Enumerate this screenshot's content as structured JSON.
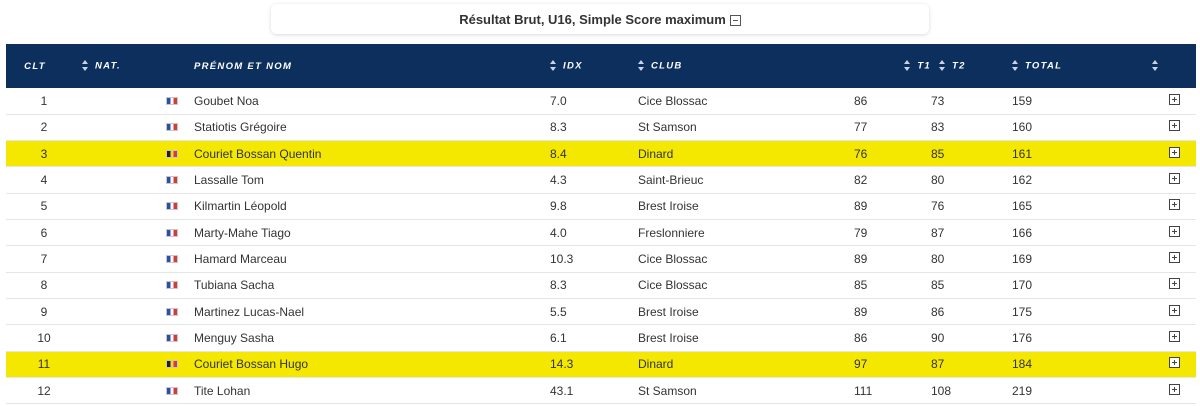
{
  "header": {
    "title": "Résultat Brut, U16, Simple Score maximum",
    "collapse_icon": "minus-square-icon"
  },
  "table": {
    "columns": {
      "rank": "CLT",
      "nat": "NAT.",
      "name": "PRÉNOM ET NOM",
      "idx": "IDX",
      "club": "CLUB",
      "t1": "T1",
      "t2": "T2",
      "total": "TOTAL"
    },
    "sort_icon": "sort-arrows-icon",
    "expand_icon": "plus-square-icon",
    "highlight_color": "#f4e800",
    "header_color": "#0d2f5e",
    "rows": [
      {
        "rank": "1",
        "flag": "fr",
        "name": "Goubet Noa",
        "idx": "7.0",
        "club": "Cice Blossac",
        "t1": "86",
        "t2": "73",
        "total": "159",
        "highlight": false
      },
      {
        "rank": "2",
        "flag": "fr",
        "name": "Statiotis Grégoire",
        "idx": "8.3",
        "club": "St Samson",
        "t1": "77",
        "t2": "83",
        "total": "160",
        "highlight": false
      },
      {
        "rank": "3",
        "flag": "be",
        "name": "Couriet Bossan Quentin",
        "idx": "8.4",
        "club": "Dinard",
        "t1": "76",
        "t2": "85",
        "total": "161",
        "highlight": true
      },
      {
        "rank": "4",
        "flag": "fr",
        "name": "Lassalle Tom",
        "idx": "4.3",
        "club": "Saint-Brieuc",
        "t1": "82",
        "t2": "80",
        "total": "162",
        "highlight": false
      },
      {
        "rank": "5",
        "flag": "fr",
        "name": "Kilmartin Léopold",
        "idx": "9.8",
        "club": "Brest Iroise",
        "t1": "89",
        "t2": "76",
        "total": "165",
        "highlight": false
      },
      {
        "rank": "6",
        "flag": "fr",
        "name": "Marty-Mahe Tiago",
        "idx": "4.0",
        "club": "Freslonniere",
        "t1": "79",
        "t2": "87",
        "total": "166",
        "highlight": false
      },
      {
        "rank": "7",
        "flag": "fr",
        "name": "Hamard Marceau",
        "idx": "10.3",
        "club": "Cice Blossac",
        "t1": "89",
        "t2": "80",
        "total": "169",
        "highlight": false
      },
      {
        "rank": "8",
        "flag": "fr",
        "name": "Tubiana Sacha",
        "idx": "8.3",
        "club": "Cice Blossac",
        "t1": "85",
        "t2": "85",
        "total": "170",
        "highlight": false
      },
      {
        "rank": "9",
        "flag": "fr",
        "name": "Martinez Lucas-Nael",
        "idx": "5.5",
        "club": "Brest Iroise",
        "t1": "89",
        "t2": "86",
        "total": "175",
        "highlight": false
      },
      {
        "rank": "10",
        "flag": "fr",
        "name": "Menguy Sasha",
        "idx": "6.1",
        "club": "Brest Iroise",
        "t1": "86",
        "t2": "90",
        "total": "176",
        "highlight": false
      },
      {
        "rank": "11",
        "flag": "be",
        "name": "Couriet Bossan Hugo",
        "idx": "14.3",
        "club": "Dinard",
        "t1": "97",
        "t2": "87",
        "total": "184",
        "highlight": true
      },
      {
        "rank": "12",
        "flag": "fr",
        "name": "Tite Lohan",
        "idx": "43.1",
        "club": "St Samson",
        "t1": "111",
        "t2": "108",
        "total": "219",
        "highlight": false
      }
    ]
  }
}
